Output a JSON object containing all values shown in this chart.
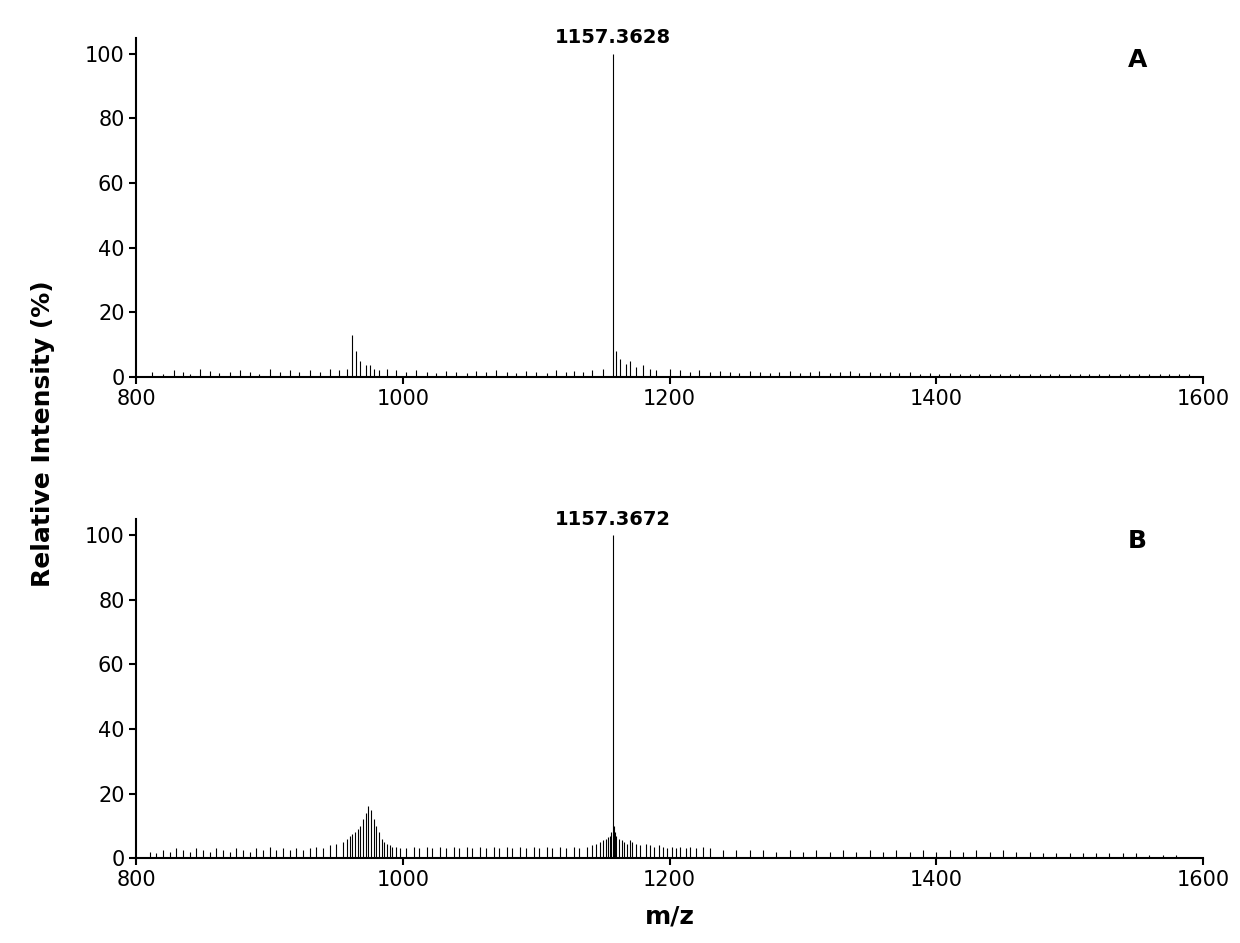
{
  "panel_A_label": "A",
  "panel_B_label": "B",
  "panel_A_peak_label": "1157.3628",
  "panel_B_peak_label": "1157.3672",
  "xmin": 800,
  "xmax": 1600,
  "ymin": 0,
  "ymax": 100,
  "xticks": [
    800,
    1000,
    1200,
    1400,
    1600
  ],
  "yticks": [
    0,
    20,
    40,
    60,
    80,
    100
  ],
  "xlabel": "m/z",
  "ylabel": "Relative Intensity (%)",
  "main_peak_mz_A": 1157.36,
  "main_peak_mz_B": 1157.37,
  "background_color": "#ffffff",
  "line_color": "#000000",
  "font_size_ticks": 15,
  "font_size_label": 18,
  "font_size_peak": 14,
  "font_size_panel": 18,
  "peaks_A": [
    [
      812,
      1.5
    ],
    [
      820,
      1.0
    ],
    [
      828,
      2.0
    ],
    [
      835,
      1.5
    ],
    [
      840,
      1.0
    ],
    [
      848,
      2.5
    ],
    [
      855,
      1.8
    ],
    [
      862,
      1.2
    ],
    [
      870,
      1.5
    ],
    [
      878,
      2.0
    ],
    [
      885,
      1.5
    ],
    [
      892,
      1.0
    ],
    [
      900,
      2.5
    ],
    [
      908,
      1.5
    ],
    [
      915,
      2.0
    ],
    [
      922,
      1.5
    ],
    [
      930,
      2.0
    ],
    [
      938,
      1.5
    ],
    [
      945,
      2.5
    ],
    [
      952,
      2.0
    ],
    [
      958,
      2.5
    ],
    [
      962,
      13.0
    ],
    [
      965,
      8.0
    ],
    [
      968,
      5.0
    ],
    [
      972,
      3.5
    ],
    [
      975,
      3.5
    ],
    [
      978,
      2.5
    ],
    [
      982,
      2.0
    ],
    [
      988,
      2.5
    ],
    [
      995,
      2.0
    ],
    [
      1002,
      1.5
    ],
    [
      1010,
      2.0
    ],
    [
      1018,
      1.5
    ],
    [
      1025,
      1.2
    ],
    [
      1032,
      1.8
    ],
    [
      1040,
      1.5
    ],
    [
      1048,
      1.2
    ],
    [
      1055,
      1.8
    ],
    [
      1062,
      1.5
    ],
    [
      1070,
      2.0
    ],
    [
      1078,
      1.5
    ],
    [
      1085,
      1.2
    ],
    [
      1092,
      1.8
    ],
    [
      1100,
      1.5
    ],
    [
      1108,
      1.2
    ],
    [
      1115,
      2.0
    ],
    [
      1122,
      1.5
    ],
    [
      1128,
      1.8
    ],
    [
      1135,
      1.5
    ],
    [
      1142,
      2.0
    ],
    [
      1150,
      2.5
    ],
    [
      1157.36,
      100.0
    ],
    [
      1160,
      8.0
    ],
    [
      1163,
      5.5
    ],
    [
      1167,
      4.0
    ],
    [
      1170,
      5.0
    ],
    [
      1175,
      3.0
    ],
    [
      1180,
      3.5
    ],
    [
      1185,
      2.5
    ],
    [
      1190,
      2.0
    ],
    [
      1200,
      2.5
    ],
    [
      1208,
      2.0
    ],
    [
      1215,
      1.5
    ],
    [
      1222,
      2.0
    ],
    [
      1230,
      1.5
    ],
    [
      1238,
      1.8
    ],
    [
      1245,
      1.5
    ],
    [
      1252,
      1.2
    ],
    [
      1260,
      1.8
    ],
    [
      1268,
      1.5
    ],
    [
      1275,
      1.2
    ],
    [
      1282,
      1.5
    ],
    [
      1290,
      1.8
    ],
    [
      1298,
      1.2
    ],
    [
      1305,
      1.5
    ],
    [
      1312,
      1.8
    ],
    [
      1320,
      1.2
    ],
    [
      1328,
      1.5
    ],
    [
      1335,
      1.8
    ],
    [
      1342,
      1.2
    ],
    [
      1350,
      1.5
    ],
    [
      1358,
      1.2
    ],
    [
      1365,
      1.5
    ],
    [
      1372,
      1.2
    ],
    [
      1380,
      1.5
    ],
    [
      1388,
      1.0
    ],
    [
      1395,
      1.2
    ],
    [
      1402,
      1.0
    ],
    [
      1410,
      1.2
    ],
    [
      1418,
      0.8
    ],
    [
      1425,
      1.0
    ],
    [
      1432,
      0.8
    ],
    [
      1440,
      1.0
    ],
    [
      1448,
      0.8
    ],
    [
      1455,
      1.0
    ],
    [
      1462,
      0.8
    ],
    [
      1470,
      1.0
    ],
    [
      1478,
      0.8
    ],
    [
      1485,
      1.0
    ],
    [
      1492,
      0.8
    ],
    [
      1500,
      1.0
    ],
    [
      1508,
      0.8
    ],
    [
      1515,
      1.0
    ],
    [
      1522,
      0.8
    ],
    [
      1530,
      1.0
    ],
    [
      1538,
      0.8
    ],
    [
      1545,
      1.0
    ],
    [
      1552,
      0.8
    ],
    [
      1560,
      1.0
    ],
    [
      1568,
      0.8
    ],
    [
      1575,
      1.0
    ],
    [
      1582,
      0.8
    ],
    [
      1590,
      1.0
    ]
  ],
  "peaks_B": [
    [
      810,
      2.0
    ],
    [
      815,
      1.5
    ],
    [
      820,
      2.5
    ],
    [
      825,
      2.0
    ],
    [
      830,
      3.0
    ],
    [
      835,
      2.5
    ],
    [
      840,
      2.0
    ],
    [
      845,
      3.0
    ],
    [
      850,
      2.5
    ],
    [
      855,
      2.0
    ],
    [
      860,
      3.0
    ],
    [
      865,
      2.5
    ],
    [
      870,
      2.0
    ],
    [
      875,
      3.0
    ],
    [
      880,
      2.5
    ],
    [
      885,
      2.0
    ],
    [
      890,
      3.0
    ],
    [
      895,
      2.5
    ],
    [
      900,
      3.5
    ],
    [
      905,
      2.5
    ],
    [
      910,
      3.0
    ],
    [
      915,
      2.5
    ],
    [
      920,
      3.0
    ],
    [
      925,
      2.5
    ],
    [
      930,
      3.0
    ],
    [
      935,
      3.5
    ],
    [
      940,
      3.0
    ],
    [
      945,
      4.0
    ],
    [
      950,
      4.5
    ],
    [
      955,
      5.0
    ],
    [
      958,
      6.0
    ],
    [
      960,
      7.0
    ],
    [
      962,
      7.5
    ],
    [
      964,
      8.0
    ],
    [
      966,
      9.0
    ],
    [
      968,
      10.0
    ],
    [
      970,
      12.0
    ],
    [
      972,
      14.0
    ],
    [
      974,
      16.0
    ],
    [
      976,
      15.0
    ],
    [
      978,
      12.0
    ],
    [
      980,
      10.0
    ],
    [
      982,
      8.0
    ],
    [
      984,
      6.0
    ],
    [
      986,
      5.0
    ],
    [
      988,
      4.5
    ],
    [
      990,
      4.0
    ],
    [
      992,
      3.5
    ],
    [
      995,
      3.5
    ],
    [
      998,
      3.0
    ],
    [
      1002,
      3.0
    ],
    [
      1008,
      3.5
    ],
    [
      1012,
      3.0
    ],
    [
      1018,
      3.5
    ],
    [
      1022,
      3.0
    ],
    [
      1028,
      3.5
    ],
    [
      1032,
      3.0
    ],
    [
      1038,
      3.5
    ],
    [
      1042,
      3.0
    ],
    [
      1048,
      3.5
    ],
    [
      1052,
      3.0
    ],
    [
      1058,
      3.5
    ],
    [
      1062,
      3.0
    ],
    [
      1068,
      3.5
    ],
    [
      1072,
      3.0
    ],
    [
      1078,
      3.5
    ],
    [
      1082,
      3.0
    ],
    [
      1088,
      3.5
    ],
    [
      1092,
      3.0
    ],
    [
      1098,
      3.5
    ],
    [
      1102,
      3.0
    ],
    [
      1108,
      3.5
    ],
    [
      1112,
      3.0
    ],
    [
      1118,
      3.5
    ],
    [
      1122,
      3.0
    ],
    [
      1128,
      3.5
    ],
    [
      1132,
      3.0
    ],
    [
      1138,
      3.5
    ],
    [
      1142,
      4.0
    ],
    [
      1145,
      4.5
    ],
    [
      1148,
      5.0
    ],
    [
      1150,
      5.5
    ],
    [
      1152,
      6.0
    ],
    [
      1154,
      6.5
    ],
    [
      1155,
      7.0
    ],
    [
      1156,
      8.0
    ],
    [
      1157.37,
      100.0
    ],
    [
      1158,
      10.0
    ],
    [
      1159,
      8.0
    ],
    [
      1160,
      7.0
    ],
    [
      1162,
      6.0
    ],
    [
      1164,
      5.5
    ],
    [
      1166,
      5.0
    ],
    [
      1168,
      4.5
    ],
    [
      1170,
      5.5
    ],
    [
      1172,
      5.0
    ],
    [
      1175,
      4.5
    ],
    [
      1178,
      4.0
    ],
    [
      1182,
      4.5
    ],
    [
      1185,
      4.0
    ],
    [
      1188,
      3.5
    ],
    [
      1192,
      4.0
    ],
    [
      1195,
      3.5
    ],
    [
      1198,
      3.0
    ],
    [
      1202,
      3.5
    ],
    [
      1205,
      3.0
    ],
    [
      1208,
      3.5
    ],
    [
      1212,
      3.0
    ],
    [
      1215,
      3.5
    ],
    [
      1220,
      3.0
    ],
    [
      1225,
      3.5
    ],
    [
      1230,
      3.0
    ],
    [
      1240,
      2.5
    ],
    [
      1250,
      2.5
    ],
    [
      1260,
      2.5
    ],
    [
      1270,
      2.5
    ],
    [
      1280,
      2.0
    ],
    [
      1290,
      2.5
    ],
    [
      1300,
      2.0
    ],
    [
      1310,
      2.5
    ],
    [
      1320,
      2.0
    ],
    [
      1330,
      2.5
    ],
    [
      1340,
      2.0
    ],
    [
      1350,
      2.5
    ],
    [
      1360,
      2.0
    ],
    [
      1370,
      2.5
    ],
    [
      1380,
      2.0
    ],
    [
      1390,
      2.5
    ],
    [
      1400,
      2.0
    ],
    [
      1410,
      2.5
    ],
    [
      1420,
      2.0
    ],
    [
      1430,
      2.5
    ],
    [
      1440,
      2.0
    ],
    [
      1450,
      2.5
    ],
    [
      1460,
      2.0
    ],
    [
      1470,
      2.0
    ],
    [
      1480,
      1.5
    ],
    [
      1490,
      1.5
    ],
    [
      1500,
      1.5
    ],
    [
      1510,
      1.5
    ],
    [
      1520,
      1.5
    ],
    [
      1530,
      1.5
    ],
    [
      1540,
      1.5
    ],
    [
      1550,
      1.5
    ],
    [
      1560,
      1.0
    ],
    [
      1570,
      1.0
    ],
    [
      1580,
      1.0
    ]
  ]
}
